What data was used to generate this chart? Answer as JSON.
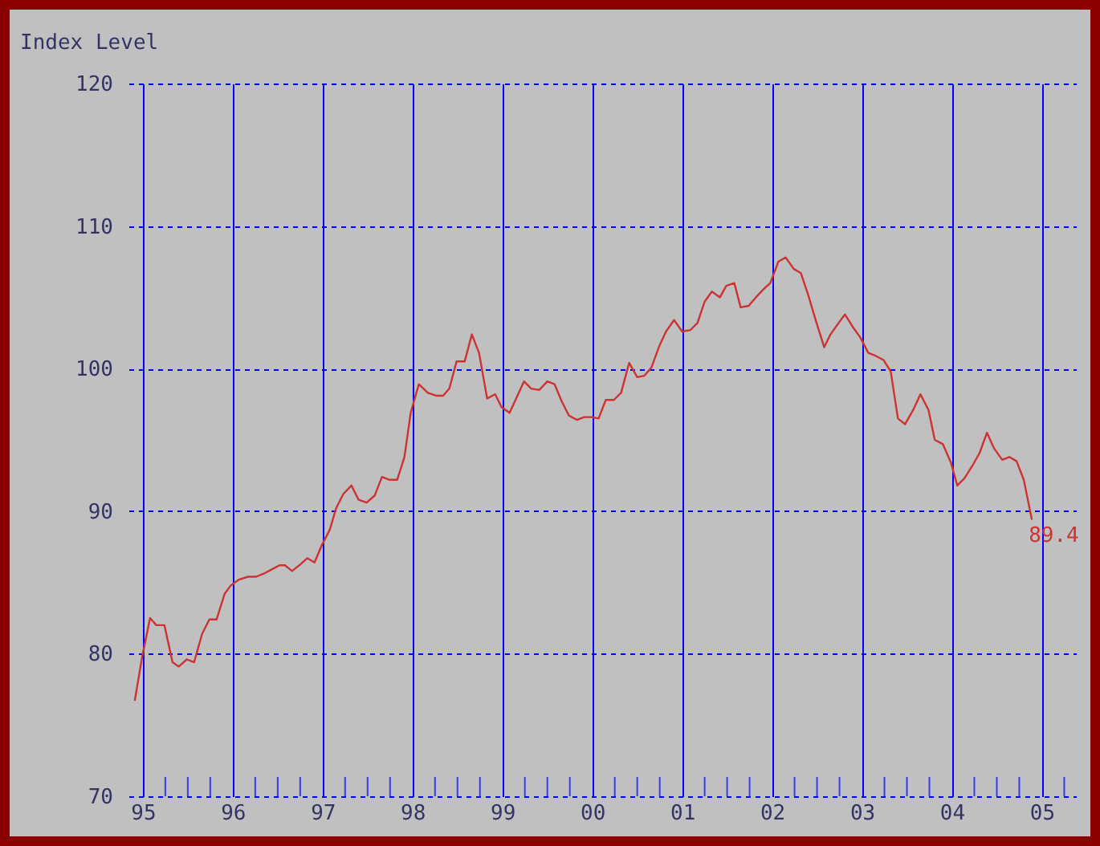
{
  "chart_data": {
    "type": "line",
    "ylabel": "Index Level",
    "x": [
      1994.91,
      1994.99,
      1995.08,
      1995.15,
      1995.24,
      1995.33,
      1995.4,
      1995.49,
      1995.57,
      1995.66,
      1995.74,
      1995.82,
      1995.91,
      1995.98,
      1996.07,
      1996.17,
      1996.26,
      1996.34,
      1996.43,
      1996.52,
      1996.58,
      1996.66,
      1996.74,
      1996.83,
      1996.91,
      1996.99,
      1997.08,
      1997.15,
      1997.23,
      1997.32,
      1997.4,
      1997.49,
      1997.58,
      1997.66,
      1997.74,
      1997.83,
      1997.91,
      1997.98,
      1998.07,
      1998.17,
      1998.26,
      1998.34,
      1998.41,
      1998.49,
      1998.58,
      1998.66,
      1998.74,
      1998.83,
      1998.92,
      1998.99,
      1999.08,
      1999.16,
      1999.24,
      1999.32,
      1999.41,
      1999.5,
      1999.58,
      1999.66,
      1999.74,
      1999.83,
      1999.91,
      1999.99,
      2000.07,
      2000.15,
      2000.24,
      2000.32,
      2000.41,
      2000.5,
      2000.58,
      2000.66,
      2000.74,
      2000.82,
      2000.91,
      2001.0,
      2001.09,
      2001.17,
      2001.25,
      2001.33,
      2001.42,
      2001.49,
      2001.58,
      2001.65,
      2001.74,
      2001.82,
      2001.91,
      2001.98,
      2002.07,
      2002.15,
      2002.24,
      2002.32,
      2002.4,
      2002.49,
      2002.58,
      2002.65,
      2002.74,
      2002.81,
      2002.9,
      2002.98,
      2003.07,
      2003.15,
      2003.24,
      2003.32,
      2003.4,
      2003.48,
      2003.57,
      2003.65,
      2003.74,
      2003.81,
      2003.9,
      2003.99,
      2004.06,
      2004.14,
      2004.23,
      2004.31,
      2004.39,
      2004.47,
      2004.56,
      2004.64,
      2004.72,
      2004.8,
      2004.89
    ],
    "series": [
      {
        "color": "#cc3333",
        "values": [
          76.7,
          79.7,
          82.5,
          82.0,
          82.0,
          79.4,
          79.1,
          79.6,
          79.4,
          81.4,
          82.4,
          82.4,
          84.2,
          84.8,
          85.2,
          85.4,
          85.4,
          85.6,
          85.9,
          86.2,
          86.2,
          85.8,
          86.2,
          86.7,
          86.4,
          87.6,
          88.7,
          90.2,
          91.2,
          91.8,
          90.8,
          90.6,
          91.1,
          92.4,
          92.2,
          92.2,
          93.8,
          96.9,
          98.9,
          98.3,
          98.1,
          98.1,
          98.6,
          100.5,
          100.5,
          102.4,
          101.1,
          97.9,
          98.2,
          97.3,
          96.9,
          98.0,
          99.1,
          98.6,
          98.5,
          99.1,
          98.9,
          97.7,
          96.7,
          96.4,
          96.6,
          96.6,
          96.5,
          97.8,
          97.8,
          98.3,
          100.4,
          99.4,
          99.5,
          100.1,
          101.5,
          102.6,
          103.4,
          102.6,
          102.7,
          103.2,
          104.7,
          105.4,
          105.0,
          105.8,
          106.0,
          104.3,
          104.4,
          105.0,
          105.6,
          106.0,
          107.5,
          107.8,
          107.0,
          106.7,
          105.2,
          103.3,
          101.5,
          102.4,
          103.2,
          103.8,
          102.9,
          102.2,
          101.1,
          100.9,
          100.6,
          99.8,
          96.5,
          96.1,
          97.1,
          98.2,
          97.1,
          95.0,
          94.7,
          93.4,
          91.8,
          92.3,
          93.2,
          94.1,
          95.5,
          94.4,
          93.6,
          93.8,
          93.5,
          92.2,
          89.4
        ]
      }
    ],
    "annotations": [
      {
        "text": "89.4",
        "x": 2004.89,
        "y": 89.4
      }
    ],
    "xlim": [
      1994.84,
      2005.38
    ],
    "xticks": [
      {
        "value": 1995,
        "label": "95"
      },
      {
        "value": 1995.25,
        "label": null
      },
      {
        "value": 1995.5,
        "label": null
      },
      {
        "value": 1995.75,
        "label": null
      },
      {
        "value": 1996,
        "label": "96"
      },
      {
        "value": 1996.25,
        "label": null
      },
      {
        "value": 1996.5,
        "label": null
      },
      {
        "value": 1996.75,
        "label": null
      },
      {
        "value": 1997,
        "label": "97"
      },
      {
        "value": 1997.25,
        "label": null
      },
      {
        "value": 1997.5,
        "label": null
      },
      {
        "value": 1997.75,
        "label": null
      },
      {
        "value": 1998,
        "label": "98"
      },
      {
        "value": 1998.25,
        "label": null
      },
      {
        "value": 1998.5,
        "label": null
      },
      {
        "value": 1998.75,
        "label": null
      },
      {
        "value": 1999,
        "label": "99"
      },
      {
        "value": 1999.25,
        "label": null
      },
      {
        "value": 1999.5,
        "label": null
      },
      {
        "value": 1999.75,
        "label": null
      },
      {
        "value": 2000,
        "label": "00"
      },
      {
        "value": 2000.25,
        "label": null
      },
      {
        "value": 2000.5,
        "label": null
      },
      {
        "value": 2000.75,
        "label": null
      },
      {
        "value": 2001,
        "label": "01"
      },
      {
        "value": 2001.25,
        "label": null
      },
      {
        "value": 2001.5,
        "label": null
      },
      {
        "value": 2001.75,
        "label": null
      },
      {
        "value": 2002,
        "label": "02"
      },
      {
        "value": 2002.25,
        "label": null
      },
      {
        "value": 2002.5,
        "label": null
      },
      {
        "value": 2002.75,
        "label": null
      },
      {
        "value": 2003,
        "label": "03"
      },
      {
        "value": 2003.25,
        "label": null
      },
      {
        "value": 2003.5,
        "label": null
      },
      {
        "value": 2003.75,
        "label": null
      },
      {
        "value": 2004,
        "label": "04"
      },
      {
        "value": 2004.25,
        "label": null
      },
      {
        "value": 2004.5,
        "label": null
      },
      {
        "value": 2004.75,
        "label": null
      },
      {
        "value": 2005,
        "label": "05"
      },
      {
        "value": 2005.25,
        "label": null
      }
    ],
    "ylim": [
      70,
      120
    ],
    "yticks": [
      70,
      80,
      90,
      100,
      110,
      120
    ],
    "grid": true,
    "legend": false,
    "marker": "none",
    "line_style": "solid"
  }
}
